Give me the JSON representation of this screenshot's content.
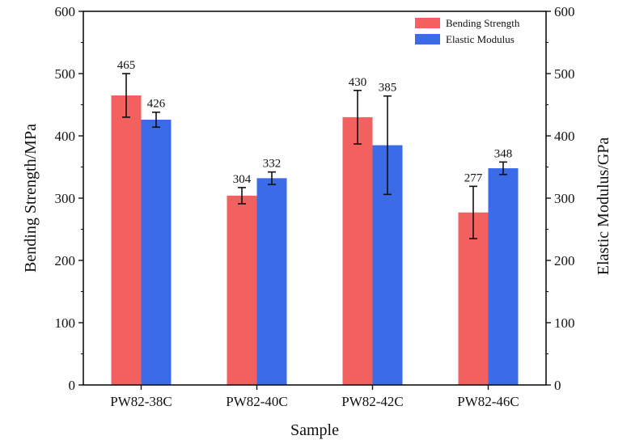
{
  "chart_data": {
    "type": "bar",
    "categories": [
      "PW82-38C",
      "PW82-40C",
      "PW82-42C",
      "PW82-46C"
    ],
    "xlabel": "Sample",
    "ylabel": "Bending Strength/MPa",
    "ylabel_right": "Elastic Modulus/GPa",
    "ylim": [
      0,
      600
    ],
    "ylim_right": [
      0,
      600
    ],
    "yticks": [
      "0",
      "100",
      "200",
      "300",
      "400",
      "500",
      "600"
    ],
    "legend_position": "top-right",
    "grid": false,
    "series": [
      {
        "name": "Bending Strength",
        "axis": "left",
        "color": "#f2615f",
        "values": [
          465,
          304,
          430,
          277
        ],
        "error": [
          35,
          13,
          43,
          42
        ],
        "labels": [
          "465",
          "304",
          "430",
          "277"
        ]
      },
      {
        "name": "Elastic Modulus",
        "axis": "right",
        "color": "#3c6be8",
        "values": [
          426,
          332,
          385,
          348
        ],
        "error": [
          12,
          10,
          79,
          10
        ],
        "labels": [
          "426",
          "332",
          "385",
          "348"
        ]
      }
    ]
  }
}
